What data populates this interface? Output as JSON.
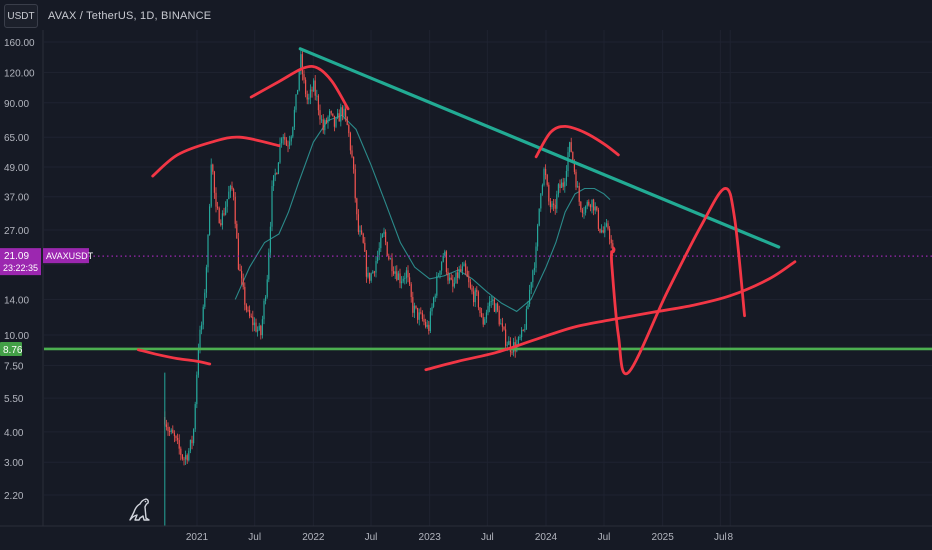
{
  "header": {
    "currency_button": "USDT",
    "symbol_line": "AVAX / TetherUS, 1D, BINANCE"
  },
  "colors": {
    "background": "#161a25",
    "up_candle": "#26a69a",
    "down_candle": "#ef5350",
    "moving_average": "#2b8a8a",
    "trendline": "#22ab94",
    "support_line": "#4caf50",
    "drawing": "#f23645",
    "price_line": "#9c27b0"
  },
  "icons": {
    "logo": "dino-icon"
  },
  "chart_data": {
    "type": "candlestick",
    "title": "AVAX / TetherUS, 1D, BINANCE",
    "y_scale": "log",
    "y_ticks": [
      "160.00",
      "120.00",
      "90.00",
      "65.00",
      "49.00",
      "37.00",
      "27.00",
      "14.00",
      "10.00",
      "7.50",
      "5.50",
      "4.00",
      "3.00",
      "2.20"
    ],
    "x_ticks": [
      "2021",
      "Jul",
      "2022",
      "Jul",
      "2023",
      "Jul",
      "2024",
      "Jul",
      "2025",
      "Jul",
      "8"
    ],
    "x_tick_dates": [
      "2021-01",
      "2021-07",
      "2022-01",
      "2022-07",
      "2023-01",
      "2023-07",
      "2024-01",
      "2024-07",
      "2025-01",
      "2025-07",
      "2025-08"
    ],
    "price_path": [
      [
        "2020-09-22",
        4.6
      ],
      [
        "2020-10-05",
        4.0
      ],
      [
        "2020-10-20",
        3.8
      ],
      [
        "2020-11-05",
        3.4
      ],
      [
        "2020-11-20",
        3.1
      ],
      [
        "2020-12-05",
        3.3
      ],
      [
        "2020-12-20",
        3.8
      ],
      [
        "2021-01-05",
        9.0
      ],
      [
        "2021-01-20",
        12.0
      ],
      [
        "2021-02-05",
        25.0
      ],
      [
        "2021-02-15",
        55.0
      ],
      [
        "2021-03-01",
        32.0
      ],
      [
        "2021-03-20",
        30.0
      ],
      [
        "2021-04-10",
        38.0
      ],
      [
        "2021-04-25",
        40.0
      ],
      [
        "2021-05-10",
        20.0
      ],
      [
        "2021-05-25",
        15.0
      ],
      [
        "2021-06-10",
        12.0
      ],
      [
        "2021-07-01",
        11.0
      ],
      [
        "2021-07-20",
        10.0
      ],
      [
        "2021-08-10",
        18.0
      ],
      [
        "2021-08-25",
        40.0
      ],
      [
        "2021-09-10",
        50.0
      ],
      [
        "2021-09-25",
        70.0
      ],
      [
        "2021-10-10",
        60.0
      ],
      [
        "2021-10-25",
        70.0
      ],
      [
        "2021-11-10",
        95.0
      ],
      [
        "2021-11-21",
        140.0
      ],
      [
        "2021-12-01",
        110.0
      ],
      [
        "2021-12-15",
        90.0
      ],
      [
        "2022-01-01",
        105.0
      ],
      [
        "2022-01-15",
        90.0
      ],
      [
        "2022-02-01",
        70.0
      ],
      [
        "2022-02-20",
        80.0
      ],
      [
        "2022-03-10",
        72.0
      ],
      [
        "2022-04-01",
        85.0
      ],
      [
        "2022-04-20",
        70.0
      ],
      [
        "2022-05-05",
        50.0
      ],
      [
        "2022-05-20",
        27.0
      ],
      [
        "2022-06-05",
        24.0
      ],
      [
        "2022-06-20",
        17.0
      ],
      [
        "2022-07-05",
        18.0
      ],
      [
        "2022-07-25",
        22.0
      ],
      [
        "2022-08-10",
        26.0
      ],
      [
        "2022-08-25",
        21.0
      ],
      [
        "2022-09-10",
        19.0
      ],
      [
        "2022-10-01",
        17.0
      ],
      [
        "2022-10-20",
        18.0
      ],
      [
        "2022-11-08",
        13.0
      ],
      [
        "2022-11-25",
        12.0
      ],
      [
        "2022-12-10",
        11.5
      ],
      [
        "2022-12-28",
        10.5
      ],
      [
        "2023-01-15",
        14.5
      ],
      [
        "2023-02-01",
        19.0
      ],
      [
        "2023-02-15",
        22.0
      ],
      [
        "2023-03-01",
        17.0
      ],
      [
        "2023-03-15",
        15.5
      ],
      [
        "2023-04-01",
        18.0
      ],
      [
        "2023-04-20",
        18.5
      ],
      [
        "2023-05-10",
        15.0
      ],
      [
        "2023-06-01",
        14.0
      ],
      [
        "2023-06-15",
        11.0
      ],
      [
        "2023-07-01",
        13.0
      ],
      [
        "2023-07-15",
        14.0
      ],
      [
        "2023-08-01",
        12.5
      ],
      [
        "2023-08-20",
        10.0
      ],
      [
        "2023-09-10",
        9.0
      ],
      [
        "2023-10-01",
        9.0
      ],
      [
        "2023-10-20",
        10.0
      ],
      [
        "2023-11-01",
        12.0
      ],
      [
        "2023-11-15",
        17.0
      ],
      [
        "2023-12-01",
        22.0
      ],
      [
        "2023-12-15",
        40.0
      ],
      [
        "2023-12-27",
        48.0
      ],
      [
        "2024-01-10",
        35.0
      ],
      [
        "2024-01-25",
        32.0
      ],
      [
        "2024-02-10",
        40.0
      ],
      [
        "2024-02-25",
        42.0
      ],
      [
        "2024-03-10",
        56.0
      ],
      [
        "2024-03-18",
        60.0
      ],
      [
        "2024-04-01",
        46.0
      ],
      [
        "2024-04-15",
        35.0
      ],
      [
        "2024-05-01",
        33.0
      ],
      [
        "2024-05-20",
        36.0
      ],
      [
        "2024-06-01",
        34.0
      ],
      [
        "2024-06-15",
        28.0
      ],
      [
        "2024-07-01",
        26.0
      ],
      [
        "2024-07-15",
        28.0
      ],
      [
        "2024-07-31",
        20.0
      ]
    ],
    "moving_average": [
      [
        "2021-05-01",
        14.0
      ],
      [
        "2021-06-15",
        19.0
      ],
      [
        "2021-08-01",
        24.0
      ],
      [
        "2021-09-15",
        26.0
      ],
      [
        "2021-10-15",
        32.0
      ],
      [
        "2021-11-15",
        42.0
      ],
      [
        "2022-01-01",
        62.0
      ],
      [
        "2022-02-15",
        76.0
      ],
      [
        "2022-04-01",
        80.0
      ],
      [
        "2022-05-15",
        70.0
      ],
      [
        "2022-07-01",
        50.0
      ],
      [
        "2022-08-15",
        35.0
      ],
      [
        "2022-10-01",
        24.0
      ],
      [
        "2022-11-15",
        19.0
      ],
      [
        "2023-01-01",
        17.0
      ],
      [
        "2023-02-15",
        17.5
      ],
      [
        "2023-04-01",
        18.5
      ],
      [
        "2023-05-15",
        17.0
      ],
      [
        "2023-07-01",
        15.0
      ],
      [
        "2023-08-15",
        13.5
      ],
      [
        "2023-10-01",
        12.5
      ],
      [
        "2023-11-15",
        14.0
      ],
      [
        "2024-01-01",
        19.0
      ],
      [
        "2024-02-01",
        24.0
      ],
      [
        "2024-03-01",
        32.0
      ],
      [
        "2024-04-01",
        38.0
      ],
      [
        "2024-05-01",
        40.0
      ],
      [
        "2024-06-01",
        40.0
      ],
      [
        "2024-07-01",
        38.0
      ],
      [
        "2024-07-20",
        36.0
      ]
    ],
    "current_price_label": "21.09",
    "symbol_tag": "AVAXUSDT",
    "countdown": "23:22:35",
    "support_label": "8.76",
    "support_value": 8.76,
    "trendline": {
      "from": [
        "2021-11-21",
        150.0
      ],
      "to": [
        "2025-12-31",
        23.0
      ]
    },
    "drawings": [
      {
        "name": "arc-2021",
        "points": [
          [
            "2020-08-15",
            45.0
          ],
          [
            "2020-11-01",
            55.0
          ],
          [
            "2021-02-15",
            62.0
          ],
          [
            "2021-05-15",
            65.0
          ],
          [
            "2021-09-15",
            60.0
          ]
        ]
      },
      {
        "name": "arc-2021-top",
        "points": [
          [
            "2021-06-20",
            95.0
          ],
          [
            "2021-09-15",
            110.0
          ],
          [
            "2021-12-01",
            125.0
          ],
          [
            "2022-01-15",
            125.0
          ],
          [
            "2022-03-01",
            110.0
          ],
          [
            "2022-04-20",
            85.0
          ]
        ]
      },
      {
        "name": "arc-2024",
        "points": [
          [
            "2023-12-01",
            54.0
          ],
          [
            "2024-01-15",
            68.0
          ],
          [
            "2024-03-01",
            72.0
          ],
          [
            "2024-05-01",
            68.0
          ],
          [
            "2024-07-01",
            61.0
          ],
          [
            "2024-08-15",
            55.0
          ]
        ]
      },
      {
        "name": "left-support-curve",
        "points": [
          [
            "2020-07-01",
            8.7
          ],
          [
            "2020-09-01",
            8.3
          ],
          [
            "2020-11-01",
            8.0
          ],
          [
            "2021-01-01",
            7.8
          ],
          [
            "2021-02-10",
            7.6
          ]
        ]
      },
      {
        "name": "base-curve",
        "points": [
          [
            "2022-12-20",
            7.2
          ],
          [
            "2023-04-01",
            7.8
          ],
          [
            "2023-08-01",
            8.5
          ],
          [
            "2023-12-01",
            9.6
          ],
          [
            "2024-04-01",
            10.8
          ],
          [
            "2024-08-01",
            11.6
          ],
          [
            "2024-12-01",
            12.4
          ],
          [
            "2025-04-01",
            13.2
          ],
          [
            "2025-08-01",
            14.5
          ],
          [
            "2025-12-01",
            17.0
          ],
          [
            "2026-02-20",
            20.0
          ]
        ]
      },
      {
        "name": "forecast-path",
        "points": [
          [
            "2024-07-25",
            22.0
          ],
          [
            "2024-07-26",
            19.0
          ],
          [
            "2024-08-15",
            10.0
          ],
          [
            "2024-09-15",
            7.0
          ],
          [
            "2025-01-15",
            15.0
          ],
          [
            "2025-05-01",
            28.0
          ],
          [
            "2025-07-15",
            40.0
          ],
          [
            "2025-08-15",
            30.0
          ],
          [
            "2025-09-15",
            12.0
          ]
        ]
      }
    ]
  }
}
